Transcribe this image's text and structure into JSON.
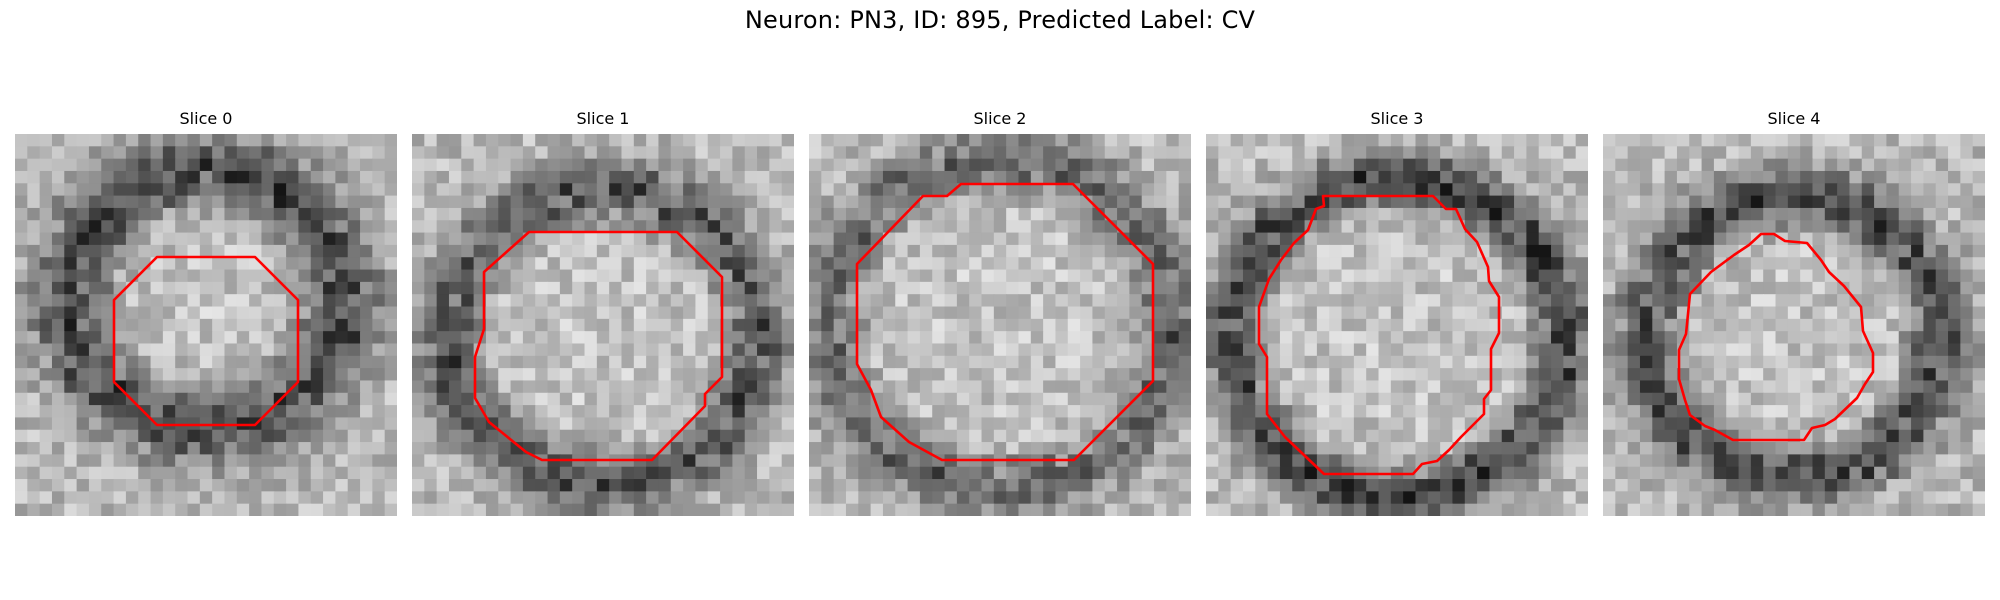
{
  "title": "Neuron: PN3, ID: 895, Predicted Label: CV",
  "colormap": "grayscale",
  "contour_color": "#ff0000",
  "slices": [
    {
      "label": "Slice 0"
    },
    {
      "label": "Slice 1"
    },
    {
      "label": "Slice 2"
    },
    {
      "label": "Slice 3"
    },
    {
      "label": "Slice 4"
    }
  ]
}
